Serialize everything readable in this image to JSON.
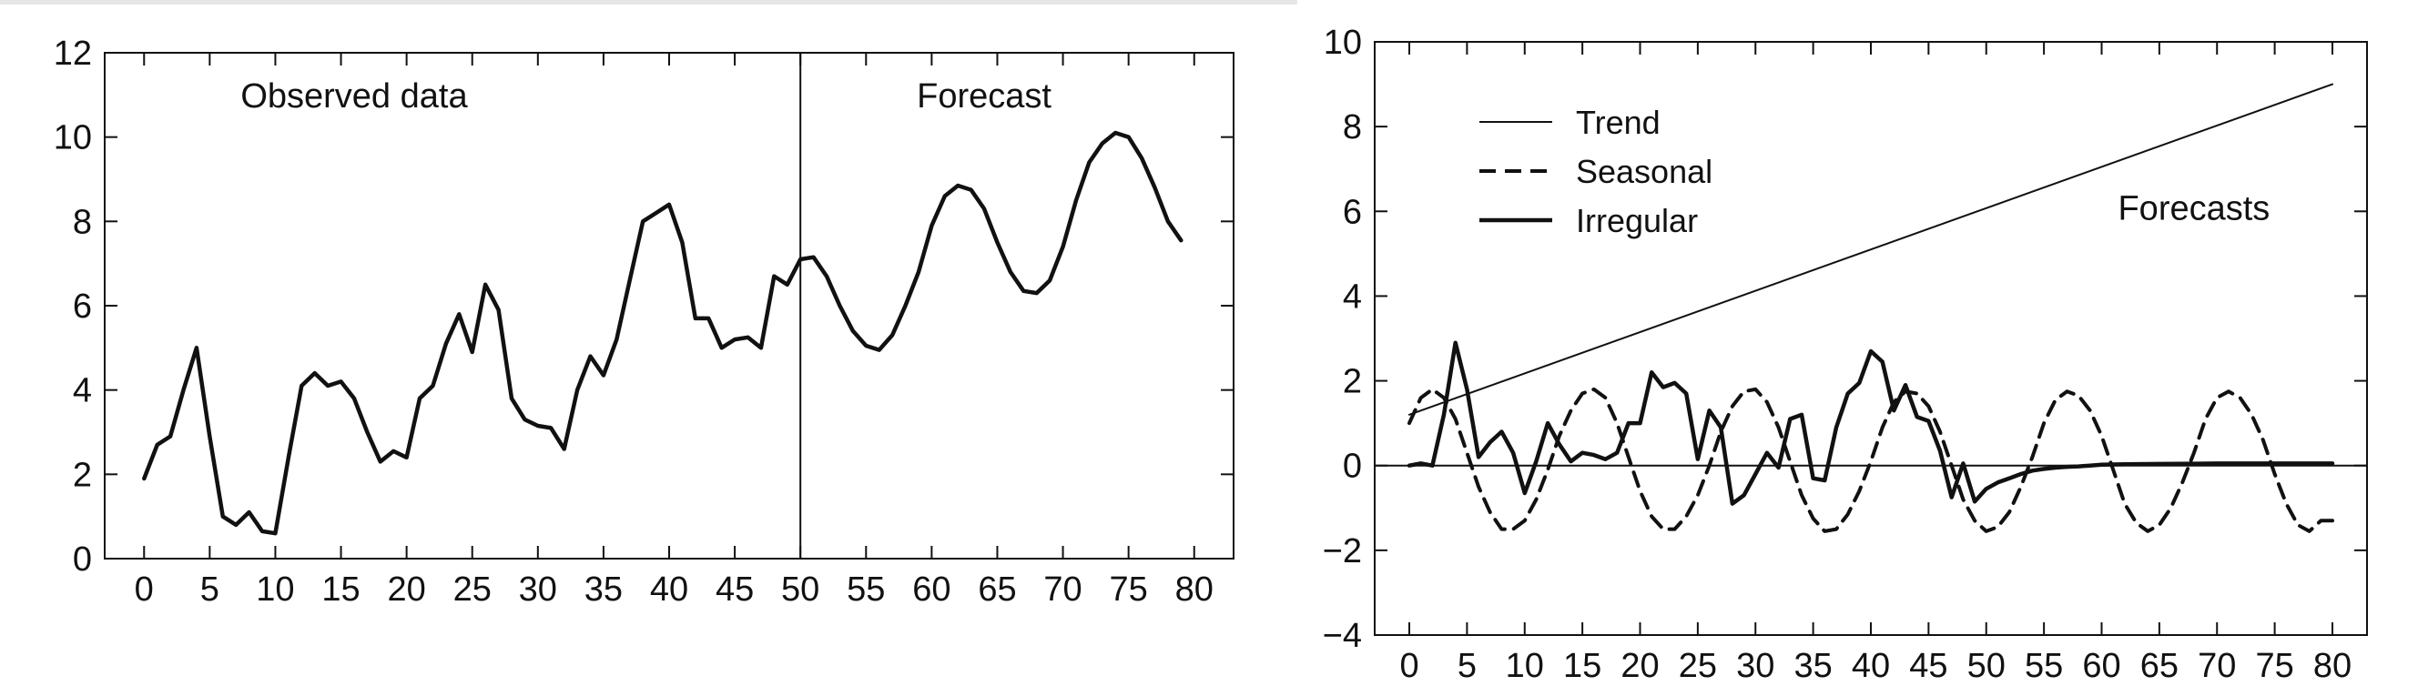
{
  "chart_data": [
    {
      "type": "line",
      "title": "",
      "xlabel": "",
      "ylabel": "",
      "xlim": [
        -3,
        83
      ],
      "ylim": [
        0,
        12
      ],
      "xticks": [
        0,
        5,
        10,
        15,
        20,
        25,
        30,
        35,
        40,
        45,
        50,
        55,
        60,
        65,
        70,
        75,
        80
      ],
      "yticks": [
        0,
        2,
        4,
        6,
        8,
        10,
        12
      ],
      "grid": false,
      "annotations": [
        {
          "text": "Observed data",
          "x": 16,
          "y": 10.7
        },
        {
          "text": "Forecast",
          "x": 64,
          "y": 10.7
        }
      ],
      "divider_x": 50,
      "series": [
        {
          "x": [
            0,
            1,
            2,
            3,
            4,
            5,
            6,
            7,
            8,
            9,
            10,
            11,
            12,
            13,
            14,
            15,
            16,
            17,
            18,
            19,
            20,
            21,
            22,
            23,
            24,
            25,
            26,
            27,
            28,
            29,
            30,
            31,
            32,
            33,
            34,
            35,
            36,
            37,
            38,
            39,
            40,
            41,
            42,
            43,
            44,
            45,
            46,
            47,
            48,
            49,
            50,
            51,
            52,
            53,
            54,
            55,
            56,
            57,
            58,
            59,
            60,
            61,
            62,
            63,
            64,
            65,
            66,
            67,
            68,
            69,
            70,
            71,
            72,
            73,
            74,
            75,
            76,
            77,
            78,
            79
          ],
          "values": [
            1.9,
            2.7,
            2.9,
            4.0,
            5.0,
            2.9,
            1.0,
            0.8,
            1.1,
            0.65,
            0.6,
            2.4,
            4.1,
            4.4,
            4.1,
            4.2,
            3.8,
            3.0,
            2.3,
            2.55,
            2.4,
            3.8,
            4.1,
            5.1,
            5.8,
            4.9,
            6.5,
            5.9,
            3.8,
            3.3,
            3.15,
            3.1,
            2.6,
            4.0,
            4.8,
            4.35,
            5.2,
            6.6,
            8.0,
            8.2,
            8.4,
            7.5,
            5.7,
            5.7,
            5.0,
            5.2,
            5.25,
            5.0,
            6.7,
            6.5,
            7.1,
            7.15,
            6.7,
            6.0,
            5.4,
            5.05,
            4.95,
            5.3,
            6.0,
            6.8,
            7.9,
            8.6,
            8.85,
            8.75,
            8.3,
            7.5,
            6.8,
            6.35,
            6.3,
            6.6,
            7.4,
            8.5,
            9.4,
            9.85,
            10.1,
            10.0,
            9.5,
            8.8,
            8.0,
            7.55
          ]
        }
      ]
    },
    {
      "type": "line",
      "title": "",
      "xlabel": "",
      "ylabel": "",
      "xlim": [
        -3,
        83
      ],
      "ylim": [
        -4,
        10
      ],
      "xticks": [
        0,
        5,
        10,
        15,
        20,
        25,
        30,
        35,
        40,
        45,
        50,
        55,
        60,
        65,
        70,
        75,
        80
      ],
      "yticks": [
        -4,
        -2,
        0,
        2,
        4,
        6,
        8,
        10
      ],
      "grid": false,
      "legend_placement": "top-left",
      "annotations": [
        {
          "text": "Forecasts",
          "x": 68,
          "y": 5.8
        }
      ],
      "series": [
        {
          "name": "Trend",
          "style": "thin-solid",
          "x": [
            0,
            80
          ],
          "values": [
            1.2,
            9.0
          ]
        },
        {
          "name": "Seasonal",
          "style": "dashed",
          "x": [
            0,
            1,
            2,
            3,
            4,
            5,
            6,
            7,
            8,
            9,
            10,
            11,
            12,
            13,
            14,
            15,
            16,
            17,
            18,
            19,
            20,
            21,
            22,
            23,
            24,
            25,
            26,
            27,
            28,
            29,
            30,
            31,
            32,
            33,
            34,
            35,
            36,
            37,
            38,
            39,
            40,
            41,
            42,
            43,
            44,
            45,
            46,
            47,
            48,
            49,
            50,
            51,
            52,
            53,
            54,
            55,
            56,
            57,
            58,
            59,
            60,
            61,
            62,
            63,
            64,
            65,
            66,
            67,
            68,
            69,
            70,
            71,
            72,
            73,
            74,
            75,
            76,
            77,
            78,
            79,
            80
          ],
          "values": [
            1.0,
            1.6,
            1.8,
            1.6,
            1.1,
            0.3,
            -0.5,
            -1.1,
            -1.5,
            -1.5,
            -1.3,
            -0.8,
            -0.1,
            0.7,
            1.3,
            1.7,
            1.8,
            1.6,
            1.0,
            0.2,
            -0.6,
            -1.2,
            -1.5,
            -1.5,
            -1.2,
            -0.7,
            0.0,
            0.8,
            1.4,
            1.75,
            1.8,
            1.5,
            0.9,
            0.1,
            -0.7,
            -1.25,
            -1.55,
            -1.5,
            -1.15,
            -0.6,
            0.1,
            0.9,
            1.5,
            1.75,
            1.7,
            1.4,
            0.8,
            0.0,
            -0.8,
            -1.3,
            -1.55,
            -1.45,
            -1.1,
            -0.5,
            0.2,
            1.0,
            1.55,
            1.75,
            1.65,
            1.3,
            0.7,
            -0.1,
            -0.9,
            -1.35,
            -1.55,
            -1.4,
            -1.0,
            -0.4,
            0.3,
            1.1,
            1.6,
            1.75,
            1.6,
            1.2,
            0.6,
            -0.2,
            -0.9,
            -1.4,
            -1.55,
            -1.3,
            -1.3
          ]
        },
        {
          "name": "Irregular",
          "style": "thick-solid",
          "x": [
            0,
            1,
            2,
            3,
            4,
            5,
            6,
            7,
            8,
            9,
            10,
            11,
            12,
            13,
            14,
            15,
            16,
            17,
            18,
            19,
            20,
            21,
            22,
            23,
            24,
            25,
            26,
            27,
            28,
            29,
            30,
            31,
            32,
            33,
            34,
            35,
            36,
            37,
            38,
            39,
            40,
            41,
            42,
            43,
            44,
            45,
            46,
            47,
            48,
            49,
            50,
            51,
            52,
            53,
            54,
            55,
            56,
            57,
            58,
            59,
            60,
            62,
            65,
            70,
            75,
            80
          ],
          "values": [
            0.0,
            0.05,
            0.0,
            1.2,
            2.9,
            1.8,
            0.2,
            0.55,
            0.8,
            0.3,
            -0.65,
            0.1,
            1.0,
            0.5,
            0.1,
            0.3,
            0.25,
            0.15,
            0.3,
            1.0,
            1.0,
            2.2,
            1.85,
            1.95,
            1.7,
            0.15,
            1.3,
            0.9,
            -0.9,
            -0.7,
            -0.2,
            0.3,
            -0.05,
            1.1,
            1.2,
            -0.3,
            -0.35,
            0.9,
            1.7,
            1.95,
            2.7,
            2.45,
            1.3,
            1.9,
            1.15,
            1.05,
            0.35,
            -0.75,
            0.05,
            -0.85,
            -0.55,
            -0.4,
            -0.3,
            -0.2,
            -0.12,
            -0.08,
            -0.05,
            -0.03,
            -0.02,
            0.0,
            0.02,
            0.03,
            0.04,
            0.05,
            0.05,
            0.05
          ]
        }
      ]
    }
  ]
}
